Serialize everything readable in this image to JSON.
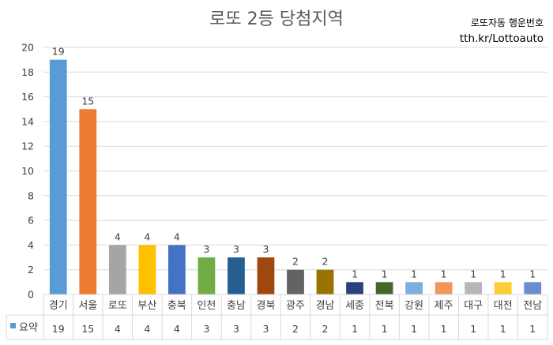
{
  "chart_data": {
    "type": "bar",
    "title": "로또 2등 당첨지역",
    "categories": [
      "경기",
      "서울",
      "로또",
      "부산",
      "충북",
      "인천",
      "충남",
      "경북",
      "광주",
      "경남",
      "세종",
      "전북",
      "강원",
      "제주",
      "대구",
      "대전",
      "전남"
    ],
    "series": [
      {
        "name": "요약",
        "values": [
          19,
          15,
          4,
          4,
          4,
          3,
          3,
          3,
          2,
          2,
          1,
          1,
          1,
          1,
          1,
          1,
          1
        ]
      }
    ],
    "bar_colors": [
      "#5b9bd5",
      "#ed7d31",
      "#a5a5a5",
      "#ffc000",
      "#4472c4",
      "#70ad47",
      "#255e91",
      "#9e480e",
      "#636363",
      "#997300",
      "#264478",
      "#43682b",
      "#7cafdd",
      "#f1975a",
      "#b7b7b7",
      "#ffcd33",
      "#698ed0"
    ],
    "ylim": [
      0,
      20
    ],
    "yticks": [
      0,
      2,
      4,
      6,
      8,
      10,
      12,
      14,
      16,
      18,
      20
    ],
    "grid": true,
    "legend_position": "bottom data table",
    "xlabel": "",
    "ylabel": ""
  },
  "brand": {
    "name": "로또자동 행운번호",
    "url": "tth.kr/Lottoauto"
  }
}
